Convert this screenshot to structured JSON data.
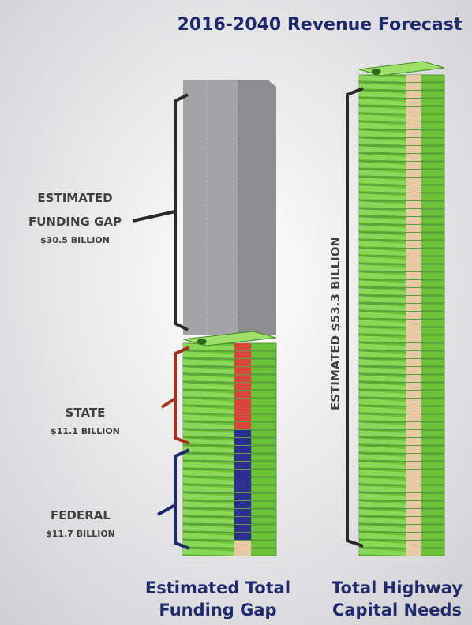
{
  "title": "2016-2040 Revenue Forecast",
  "left_column": {
    "gap_label": [
      "ESTIMATED",
      "FUNDING GAP"
    ],
    "gap_amount": "$30.5 BILLION",
    "state_label": "STATE",
    "state_amount": "$11.1 BILLION",
    "federal_label": "FEDERAL",
    "federal_amount": "$11.7 BILLION",
    "caption": [
      "Estimated Total",
      "Funding Gap"
    ]
  },
  "right_column": {
    "vertical_label": "ESTIMATED $53.3 BILLION",
    "caption": [
      "Total Highway",
      "Capital Needs"
    ]
  }
}
